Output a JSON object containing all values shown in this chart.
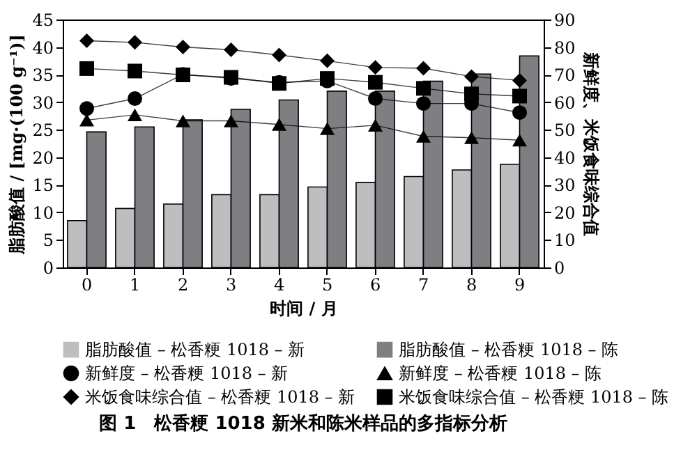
{
  "chart_data": {
    "type": "bar",
    "title": "图 1　松香粳 1018 新米和陈米样品的多指标分析",
    "xlabel": "时间 / 月",
    "ylabel": "脂肪酸值 / [mg·(100 g⁻¹)]",
    "y2label": "新鲜度、米饭食味综合值",
    "categories": [
      "0",
      "1",
      "2",
      "3",
      "4",
      "5",
      "6",
      "7",
      "8",
      "9"
    ],
    "series": [
      {
        "name": "脂肪酸值 – 松香粳 1018 – 新",
        "color": "#bebec0",
        "values": [
          8.5,
          10.7,
          11.5,
          13.2,
          13.2,
          14.6,
          15.4,
          16.5,
          17.7,
          18.7
        ]
      },
      {
        "name": "脂肪酸值 – 松香粳 1018 – 陈",
        "color": "#7f7f83",
        "values": [
          24.6,
          25.5,
          26.8,
          28.7,
          30.4,
          32.0,
          32.0,
          33.8,
          35.1,
          38.4
        ]
      },
      {
        "name": "新鲜度 – 松香粳 1018 – 新",
        "type": "line",
        "axis": "y2",
        "color": "#000000",
        "marker": "circle",
        "values": [
          57.7,
          61.3,
          70.1,
          68.6,
          67.2,
          67.7,
          61.3,
          59.5,
          59.5,
          56.2
        ]
      },
      {
        "name": "新鲜度 – 松香粳 1018 – 陈",
        "type": "line",
        "axis": "y2",
        "color": "#000000",
        "marker": "triangle",
        "values": [
          53.5,
          55.4,
          53.2,
          53.2,
          51.9,
          50.4,
          51.6,
          47.6,
          47.1,
          46.2
        ]
      },
      {
        "name": "米饭食味综合值 – 松香粳 1018 – 新",
        "type": "line",
        "axis": "y2",
        "color": "#000000",
        "marker": "diamond",
        "values": [
          82.3,
          81.7,
          80.0,
          79.0,
          77.1,
          75.0,
          72.6,
          72.3,
          69.3,
          67.9
        ]
      },
      {
        "name": "米饭食味综合值 – 松香粳 1018 – 陈",
        "type": "line",
        "axis": "y2",
        "color": "#000000",
        "marker": "square",
        "values": [
          72.2,
          71.3,
          69.9,
          69.0,
          66.8,
          68.6,
          67.2,
          65.0,
          63.0,
          62.2
        ]
      }
    ],
    "ylim": [
      0,
      45
    ],
    "yticks": [
      0,
      5,
      10,
      15,
      20,
      25,
      30,
      35,
      40,
      45
    ],
    "y2lim": [
      0,
      90
    ],
    "y2ticks": [
      0,
      10,
      20,
      30,
      40,
      50,
      60,
      70,
      80,
      90
    ],
    "grid": false,
    "legend": "bottom"
  }
}
